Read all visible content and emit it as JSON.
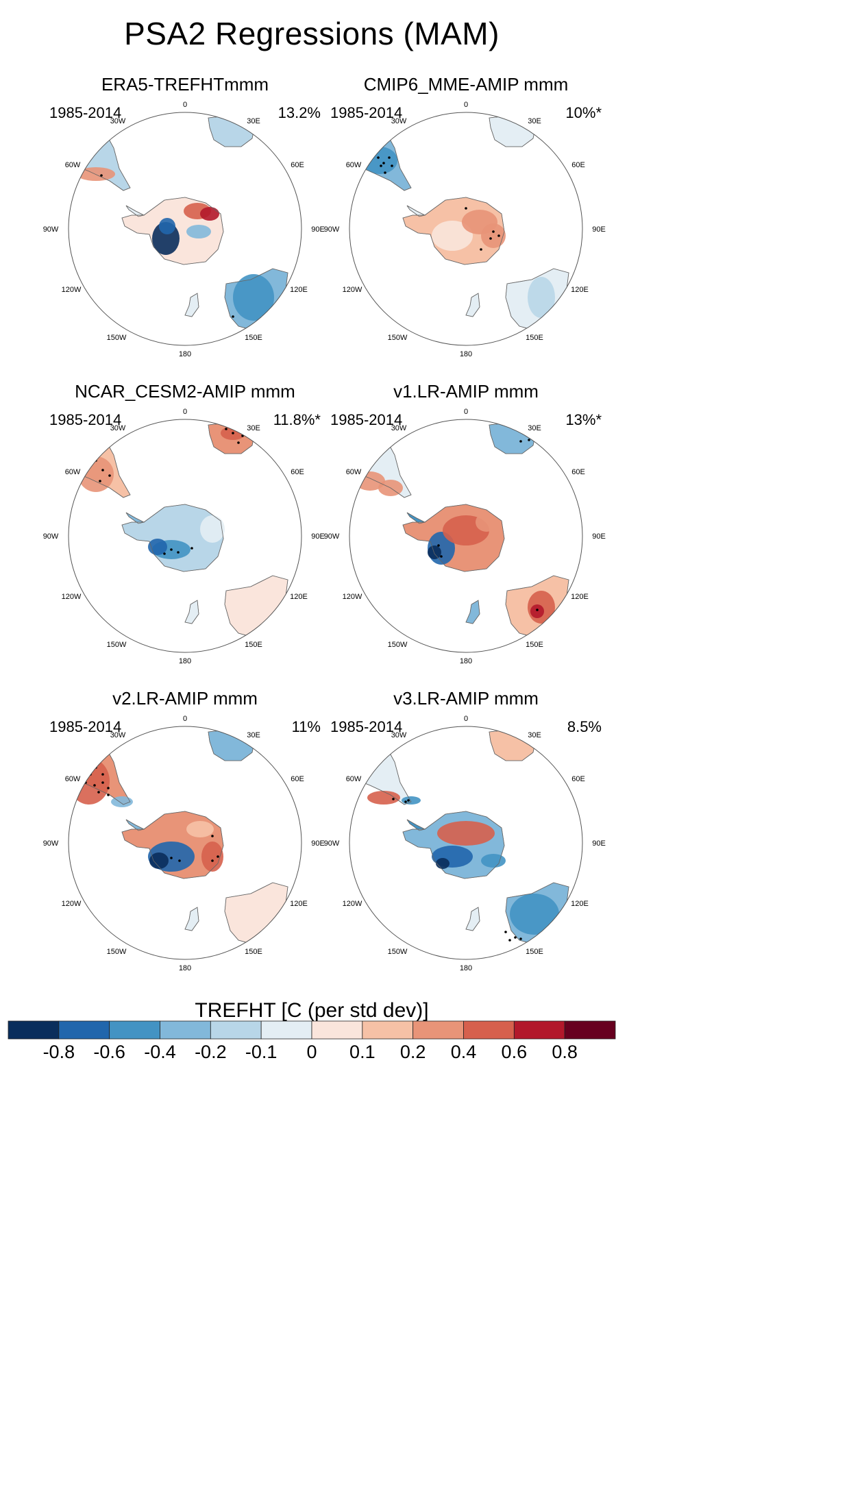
{
  "figure": {
    "title": "PSA2 Regressions (MAM)"
  },
  "map_labels": {
    "top": "0",
    "bottom": "180",
    "left": "90W",
    "right": "90E",
    "upper_left_1": "30W",
    "upper_left_2": "60W",
    "upper_right_1": "30E",
    "upper_right_2": "60E",
    "lower_left_1": "120W",
    "lower_left_2": "150W",
    "lower_right_1": "120E",
    "lower_right_2": "150E"
  },
  "panels": [
    {
      "title": "ERA5-TREFHTmmm",
      "period": "1985-2014",
      "percent": "13.2%",
      "pattern": 0
    },
    {
      "title": "CMIP6_MME-AMIP  mmm",
      "period": "1985-2014",
      "percent": "10%*",
      "pattern": 1
    },
    {
      "title": "NCAR_CESM2-AMIP  mmm",
      "period": "1985-2014",
      "percent": "11.8%*",
      "pattern": 2
    },
    {
      "title": "v1.LR-AMIP  mmm",
      "period": "1985-2014",
      "percent": "13%*",
      "pattern": 3
    },
    {
      "title": "v2.LR-AMIP  mmm",
      "period": "1985-2014",
      "percent": "11%",
      "pattern": 4
    },
    {
      "title": "v3.LR-AMIP  mmm",
      "period": "1985-2014",
      "percent": "8.5%",
      "pattern": 5
    }
  ],
  "colorbar": {
    "title": "TREFHT [C (per std dev)]",
    "labels": [
      "-0.8",
      "-0.6",
      "-0.4",
      "-0.2",
      "-0.1",
      "0",
      "0.1",
      "0.2",
      "0.4",
      "0.6",
      "0.8"
    ],
    "colors": [
      "#0a2e5c",
      "#2166ac",
      "#4393c3",
      "#82b8da",
      "#b8d6e8",
      "#e4eef4",
      "#fae5dc",
      "#f6c1a6",
      "#e89478",
      "#d6604d",
      "#b2182b",
      "#67001f"
    ]
  }
}
